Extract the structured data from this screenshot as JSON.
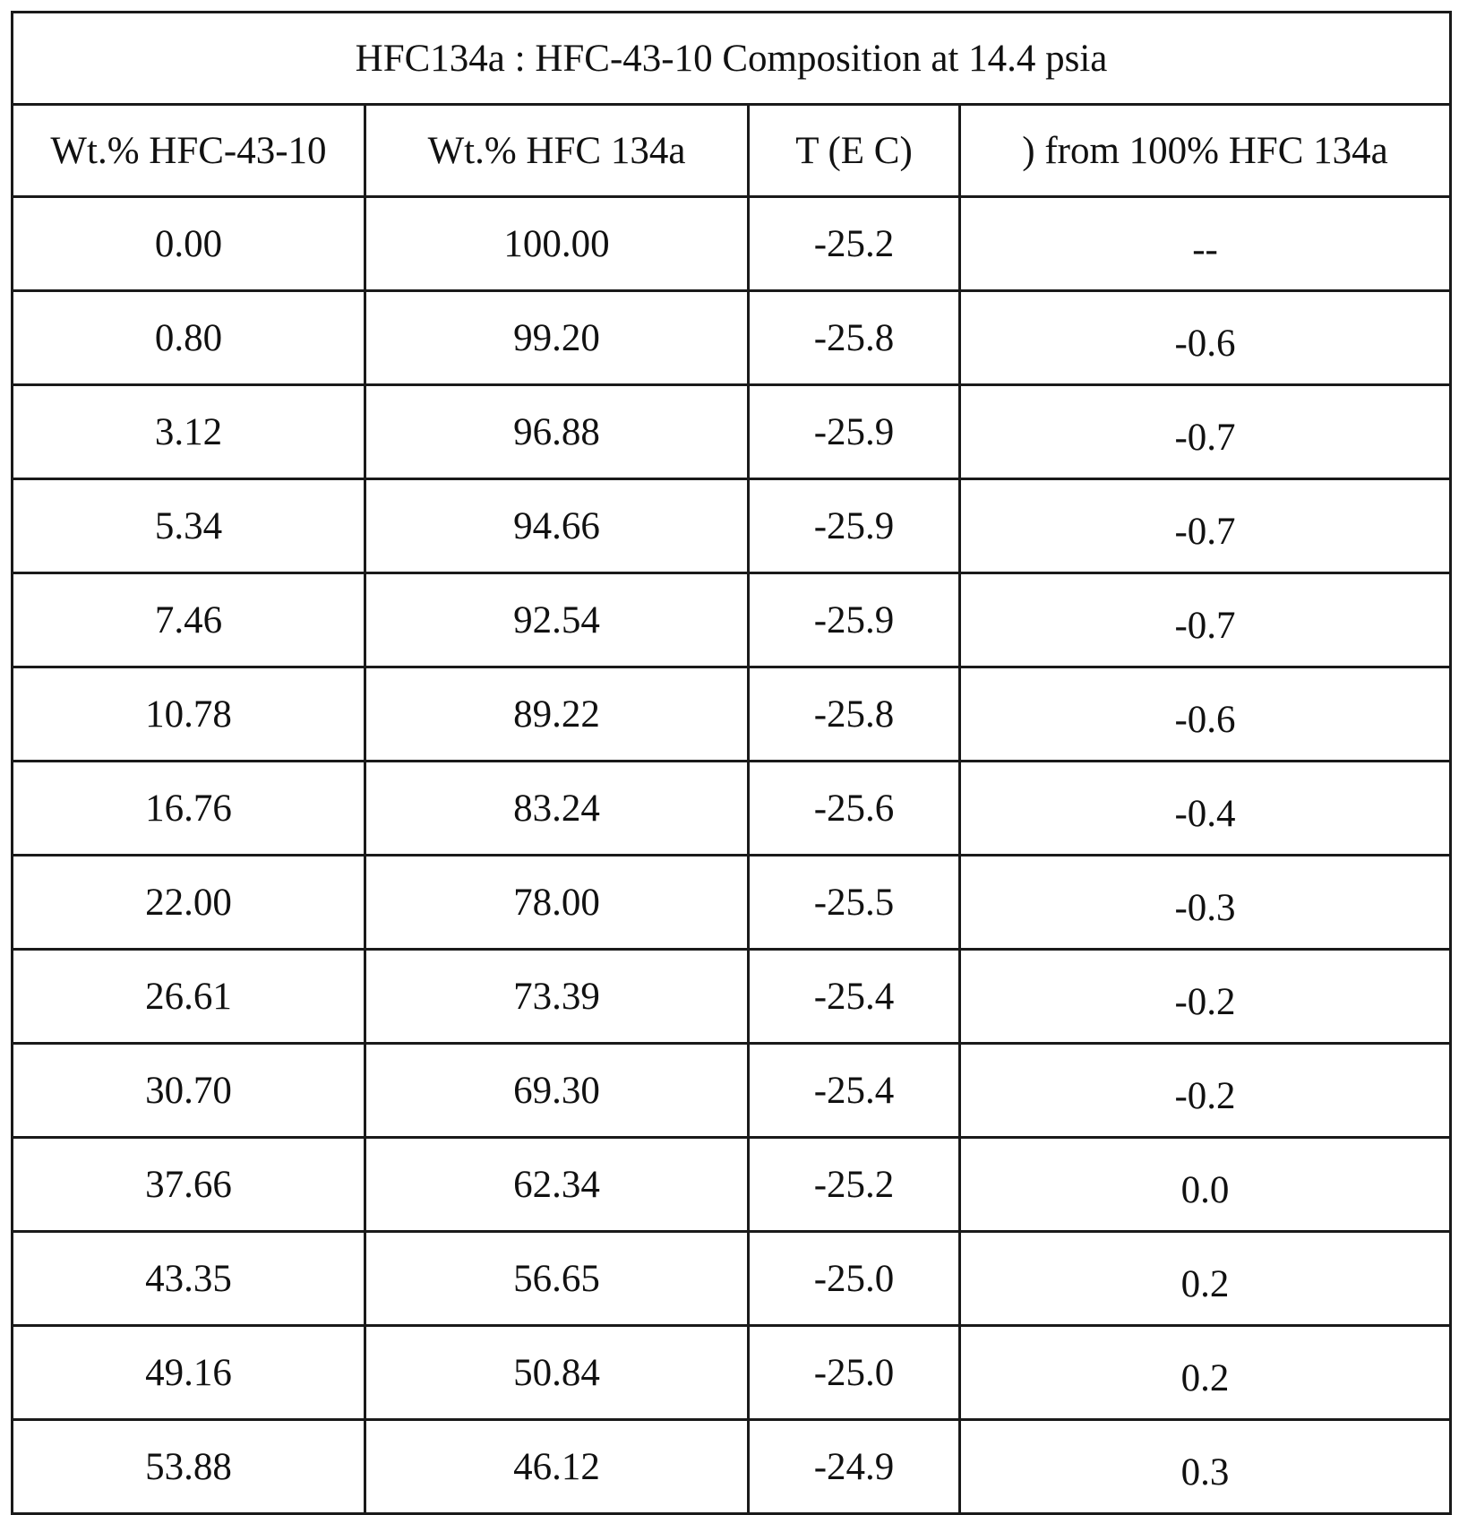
{
  "table": {
    "title": "HFC134a : HFC-43-10 Composition at 14.4 psia",
    "headers": [
      "Wt.% HFC-43-10",
      "Wt.% HFC 134a",
      "T  (E C)",
      ") from 100% HFC 134a"
    ],
    "rows": [
      [
        "0.00",
        "100.00",
        "-25.2",
        "--"
      ],
      [
        "0.80",
        "99.20",
        "-25.8",
        "-0.6"
      ],
      [
        "3.12",
        "96.88",
        "-25.9",
        "-0.7"
      ],
      [
        "5.34",
        "94.66",
        "-25.9",
        "-0.7"
      ],
      [
        "7.46",
        "92.54",
        "-25.9",
        "-0.7"
      ],
      [
        "10.78",
        "89.22",
        "-25.8",
        "-0.6"
      ],
      [
        "16.76",
        "83.24",
        "-25.6",
        "-0.4"
      ],
      [
        "22.00",
        "78.00",
        "-25.5",
        "-0.3"
      ],
      [
        "26.61",
        "73.39",
        "-25.4",
        "-0.2"
      ],
      [
        "30.70",
        "69.30",
        "-25.4",
        "-0.2"
      ],
      [
        "37.66",
        "62.34",
        "-25.2",
        "0.0"
      ],
      [
        "43.35",
        "56.65",
        "-25.0",
        "0.2"
      ],
      [
        "49.16",
        "50.84",
        "-25.0",
        "0.2"
      ],
      [
        "53.88",
        "46.12",
        "-24.9",
        "0.3"
      ]
    ]
  }
}
